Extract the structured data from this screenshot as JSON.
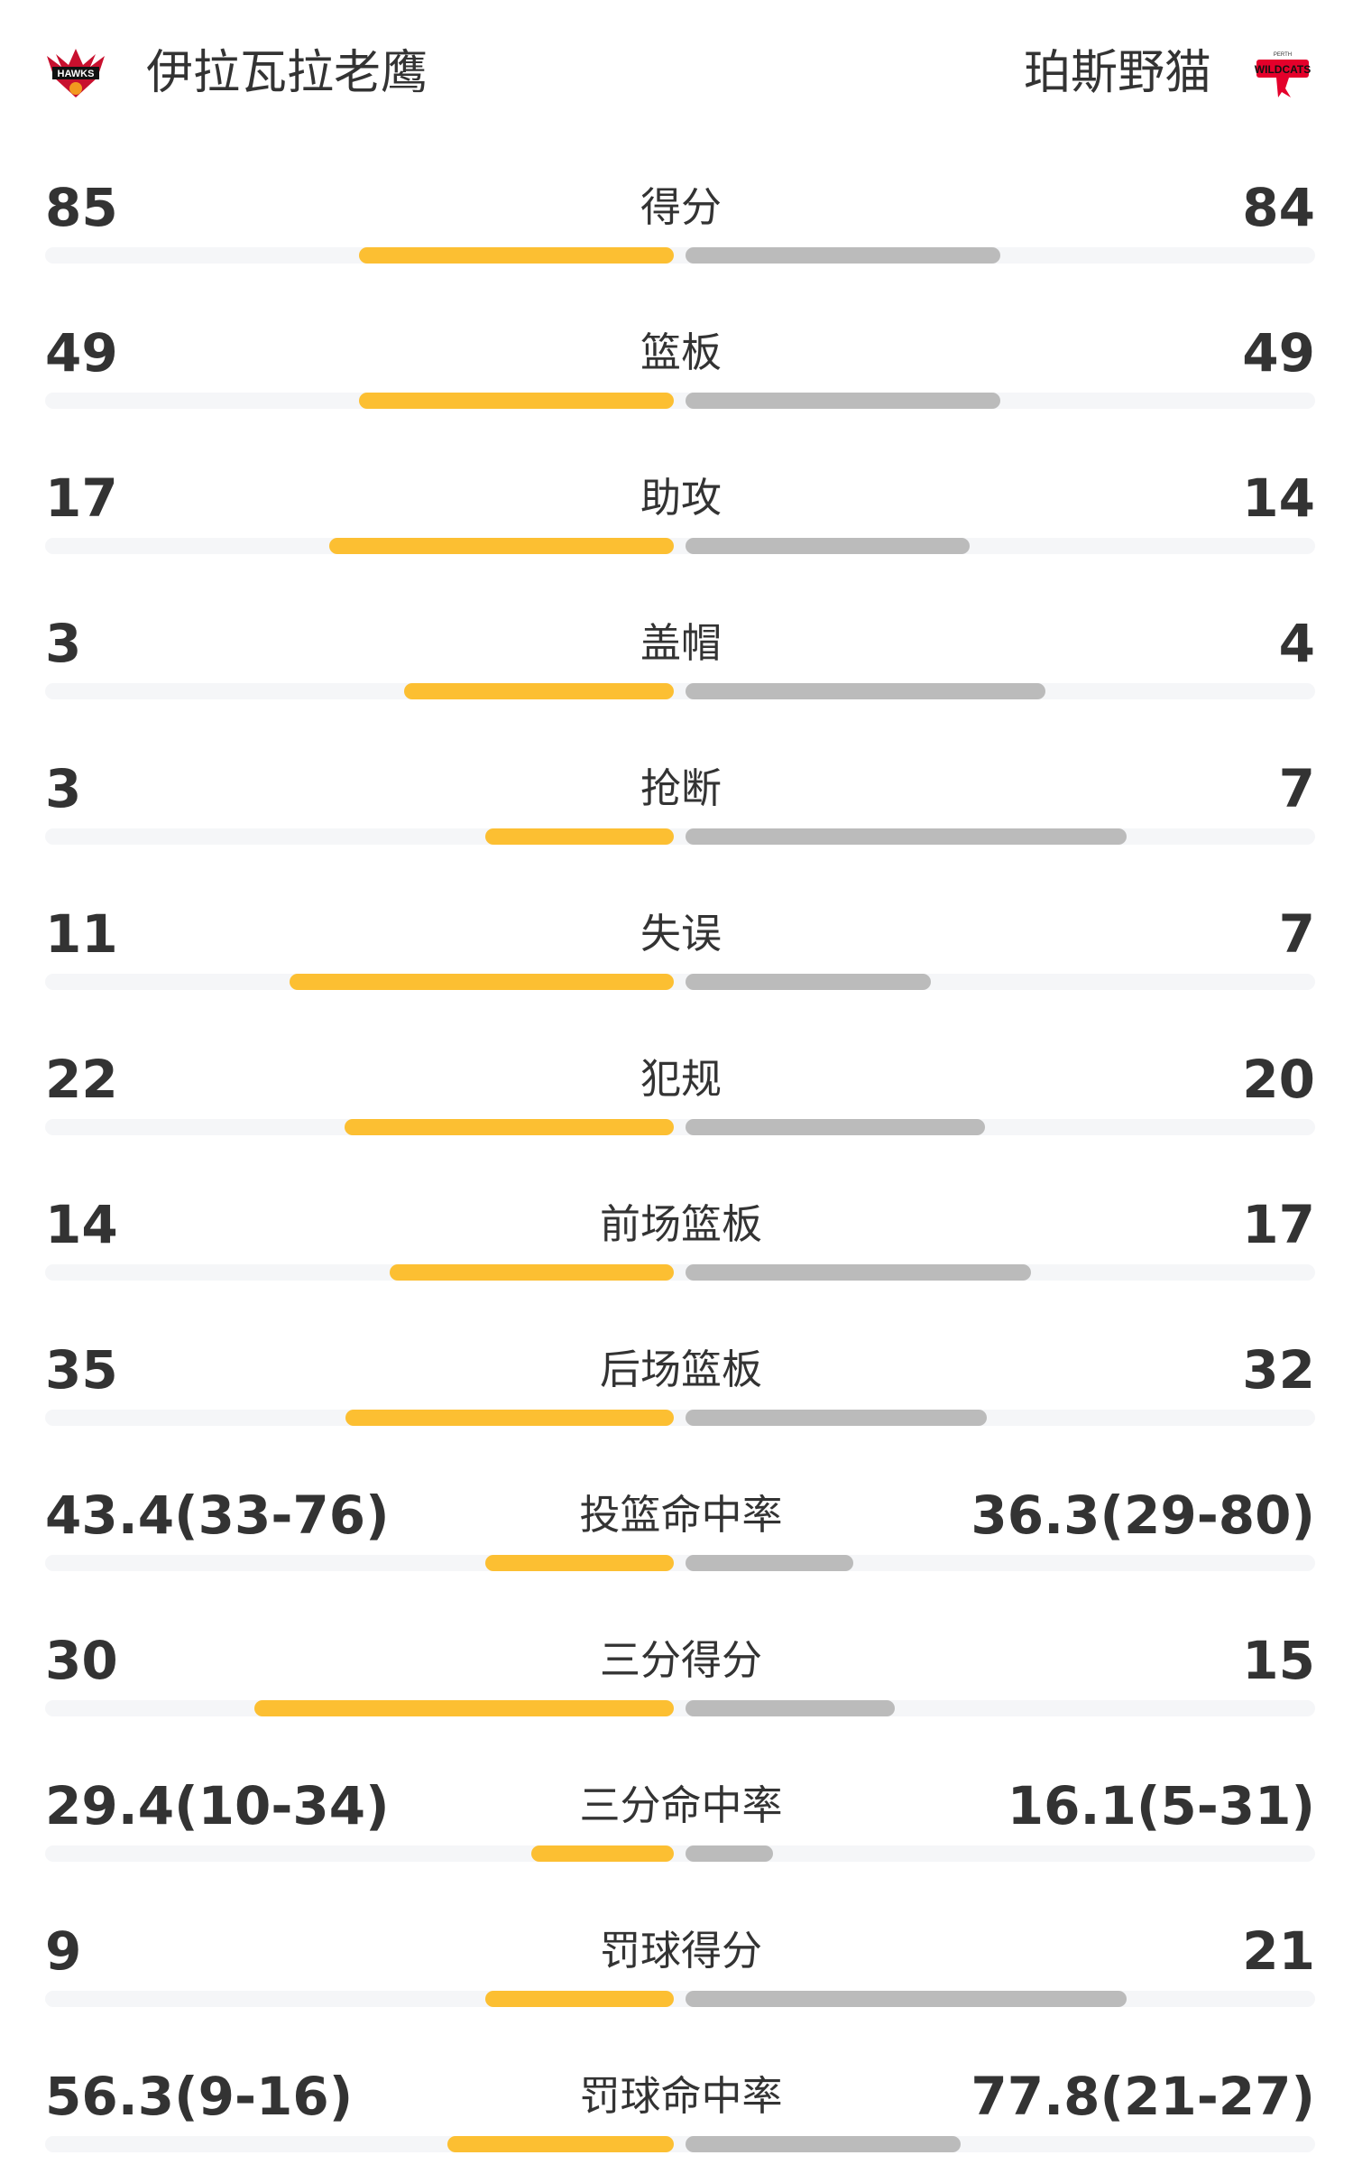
{
  "header": {
    "home_team": "伊拉瓦拉老鹰",
    "away_team": "珀斯野猫",
    "home_logo_icon": "hawks-logo",
    "away_logo_icon": "wildcats-logo"
  },
  "colors": {
    "home_bar": "#fcbf32",
    "away_bar": "#bbbbbb",
    "track": "#f5f6f8"
  },
  "stats": [
    {
      "label": "得分",
      "home": "85",
      "away": "84",
      "home_fill": 0.5,
      "away_fill": 0.5
    },
    {
      "label": "篮板",
      "home": "49",
      "away": "49",
      "home_fill": 0.5,
      "away_fill": 0.5
    },
    {
      "label": "助攻",
      "home": "17",
      "away": "14",
      "home_fill": 0.548,
      "away_fill": 0.452
    },
    {
      "label": "盖帽",
      "home": "3",
      "away": "4",
      "home_fill": 0.429,
      "away_fill": 0.571
    },
    {
      "label": "抢断",
      "home": "3",
      "away": "7",
      "home_fill": 0.3,
      "away_fill": 0.7
    },
    {
      "label": "失误",
      "home": "11",
      "away": "7",
      "home_fill": 0.611,
      "away_fill": 0.389
    },
    {
      "label": "犯规",
      "home": "22",
      "away": "20",
      "home_fill": 0.524,
      "away_fill": 0.476
    },
    {
      "label": "前场篮板",
      "home": "14",
      "away": "17",
      "home_fill": 0.452,
      "away_fill": 0.548
    },
    {
      "label": "后场篮板",
      "home": "35",
      "away": "32",
      "home_fill": 0.522,
      "away_fill": 0.478
    },
    {
      "label": "投篮命中率",
      "home": "43.4(33-76)",
      "away": "36.3(29-80)",
      "home_fill": 0.3,
      "away_fill": 0.266
    },
    {
      "label": "三分得分",
      "home": "30",
      "away": "15",
      "home_fill": 0.667,
      "away_fill": 0.333
    },
    {
      "label": "三分命中率",
      "home": "29.4(10-34)",
      "away": "16.1(5-31)",
      "home_fill": 0.227,
      "away_fill": 0.139
    },
    {
      "label": "罚球得分",
      "home": "9",
      "away": "21",
      "home_fill": 0.3,
      "away_fill": 0.7
    },
    {
      "label": "罚球命中率",
      "home": "56.3(9-16)",
      "away": "77.8(21-27)",
      "home_fill": 0.36,
      "away_fill": 0.4375
    }
  ]
}
